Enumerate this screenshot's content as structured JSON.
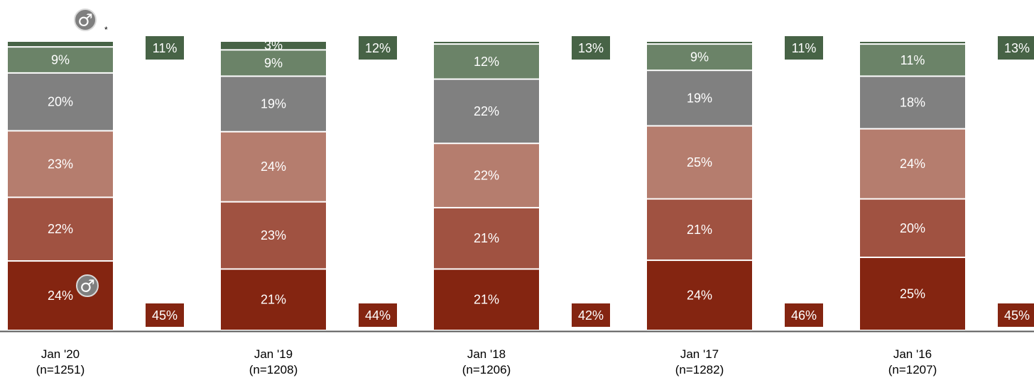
{
  "chart_data": {
    "type": "bar",
    "stacked": true,
    "categories": [
      "Jan '20",
      "Jan '19",
      "Jan '18",
      "Jan '17",
      "Jan '16"
    ],
    "sample_sizes": [
      "(n=1251)",
      "(n=1208)",
      "(n=1206)",
      "(n=1282)",
      "(n=1207)"
    ],
    "segments_bottom_to_top": [
      {
        "values": [
          24,
          21,
          21,
          24,
          25
        ],
        "color": "#842511"
      },
      {
        "values": [
          22,
          23,
          21,
          21,
          20
        ],
        "color": "#A05241"
      },
      {
        "values": [
          23,
          24,
          22,
          25,
          24
        ],
        "color": "#B57D6E"
      },
      {
        "values": [
          20,
          19,
          22,
          19,
          18
        ],
        "color": "#808080"
      },
      {
        "values": [
          9,
          9,
          12,
          9,
          11
        ],
        "color": "#6B8368"
      },
      {
        "values": [
          2,
          3,
          1,
          1,
          1
        ],
        "color": "#476346",
        "labels": [
          "",
          "3%",
          "",
          "",
          ""
        ]
      }
    ],
    "bottom_box": {
      "labels": [
        "45%",
        "44%",
        "42%",
        "46%",
        "45%"
      ],
      "color": "#842511"
    },
    "top_box": {
      "labels": [
        "11%",
        "12%",
        "13%",
        "11%",
        "13%"
      ],
      "color": "#476346"
    },
    "markers": [
      {
        "icon": "male-symbol-icon",
        "glyph": "♂",
        "position": "above first bar",
        "note": "*"
      },
      {
        "icon": "male-symbol-icon",
        "glyph": "♂",
        "position": "in bottom segment of first bar",
        "note": ""
      }
    ],
    "ylim": [
      0,
      100
    ],
    "grid": false,
    "legend": "none"
  }
}
